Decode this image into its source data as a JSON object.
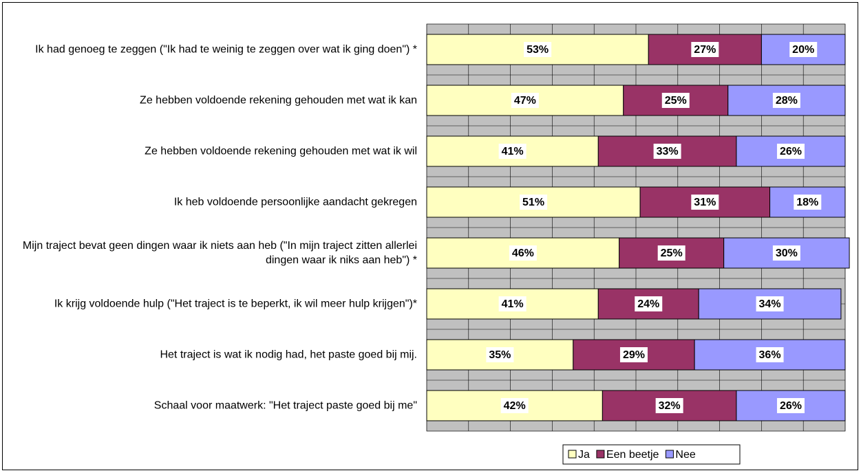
{
  "chart_data": {
    "type": "stacked-barh",
    "categories": [
      "Ik had genoeg te zeggen (\"Ik had te weinig te zeggen over wat ik ging doen\") *",
      "Ze hebben voldoende rekening gehouden met wat ik kan",
      "Ze hebben voldoende rekening gehouden met wat ik wil",
      "Ik heb voldoende persoonlijke aandacht gekregen",
      "Mijn traject bevat geen dingen waar ik niets aan heb (\"In mijn traject zitten allerlei dingen waar ik niks aan heb\") *",
      "Ik krijg voldoende hulp (\"Het traject is te beperkt, ik wil meer hulp krijgen\")*",
      "Het traject is wat ik nodig had, het paste goed bij mij.",
      "Schaal voor maatwerk: \"Het traject paste goed bij me\""
    ],
    "series": [
      {
        "name": "Ja",
        "color": "#ffffc0",
        "values": [
          53,
          47,
          41,
          51,
          46,
          41,
          35,
          42
        ],
        "value_labels": [
          "53%",
          "47%",
          "41%",
          "51%",
          "46%",
          "41%",
          "35%",
          "42%"
        ]
      },
      {
        "name": "Een beetje",
        "color": "#993366",
        "values": [
          27,
          25,
          33,
          31,
          25,
          24,
          29,
          32
        ],
        "value_labels": [
          "27%",
          "25%",
          "33%",
          "31%",
          "25%",
          "24%",
          "29%",
          "32%"
        ]
      },
      {
        "name": "Nee",
        "color": "#9999ff",
        "values": [
          20,
          28,
          26,
          18,
          30,
          34,
          36,
          26
        ],
        "value_labels": [
          "20%",
          "28%",
          "26%",
          "18%",
          "30%",
          "34%",
          "36%",
          "26%"
        ]
      }
    ],
    "xlim": [
      0,
      100
    ],
    "xticks": [
      0,
      10,
      20,
      30,
      40,
      50,
      60,
      70,
      80,
      90,
      100
    ],
    "grid": true,
    "legend": "bottom"
  }
}
